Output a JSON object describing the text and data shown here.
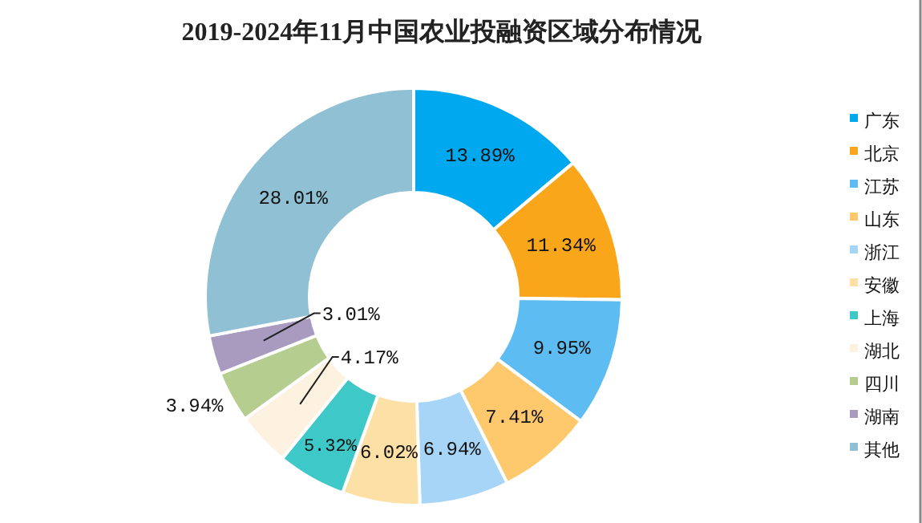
{
  "chart_data": {
    "type": "donut",
    "title": "2019-2024年11月中国农业投融资区域分布情况",
    "categories": [
      "广东",
      "北京",
      "江苏",
      "山东",
      "浙江",
      "安徽",
      "上海",
      "湖北",
      "四川",
      "湖南",
      "其他"
    ],
    "values": [
      13.89,
      11.34,
      9.95,
      7.41,
      6.94,
      6.02,
      5.32,
      4.17,
      3.94,
      3.01,
      28.01
    ],
    "colors": [
      "#00a8f0",
      "#f9a61a",
      "#5dbcf2",
      "#fdc96c",
      "#a7d5f7",
      "#fde0a6",
      "#3ec8c8",
      "#fdf1df",
      "#b5cd8f",
      "#a99bc0",
      "#8fc0d4"
    ],
    "value_labels": [
      "13.89%",
      "11.34%",
      "9.95%",
      "7.41%",
      "6.94%",
      "6.02%",
      "5.32%",
      "4.17%",
      "3.94%",
      "3.01%",
      "28.01%"
    ],
    "legend": "right"
  }
}
